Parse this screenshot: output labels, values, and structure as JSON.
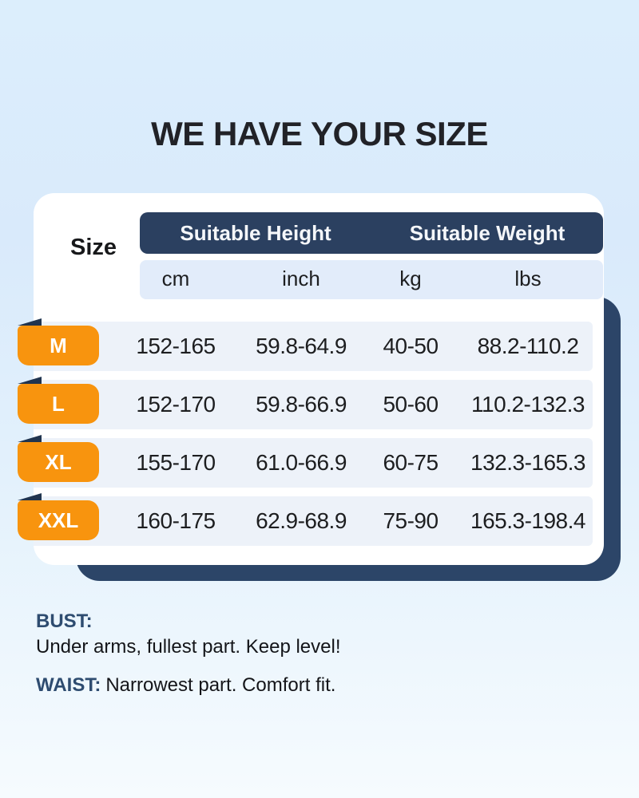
{
  "title": "WE HAVE YOUR SIZE",
  "table": {
    "size_column_label": "Size",
    "column_groups": [
      {
        "label": "Suitable Height"
      },
      {
        "label": "Suitable Weight"
      }
    ],
    "units": [
      "cm",
      "inch",
      "kg",
      "lbs"
    ],
    "rows": [
      {
        "size": "M",
        "values": [
          "152-165",
          "59.8-64.9",
          "40-50",
          "88.2-110.2"
        ]
      },
      {
        "size": "L",
        "values": [
          "152-170",
          "59.8-66.9",
          "50-60",
          "110.2-132.3"
        ]
      },
      {
        "size": "XL",
        "values": [
          "155-170",
          "61.0-66.9",
          "60-75",
          "132.3-165.3"
        ]
      },
      {
        "size": "XXL",
        "values": [
          "160-175",
          "62.9-68.9",
          "75-90",
          "165.3-198.4"
        ]
      }
    ]
  },
  "notes": {
    "bust_label": "BUST:",
    "bust_text": "Under arms, fullest part. Keep level!",
    "waist_label": "WAIST:",
    "waist_text": "Narrowest part. Comfort fit."
  },
  "colors": {
    "accent_orange": "#F8940E",
    "navy": "#2B4060",
    "shadow_navy": "#2C4568",
    "fold_navy": "#20344F",
    "subheader_blue": "#E2ECFA",
    "band_blue": "#EDF2F9"
  },
  "chart_data": {
    "type": "table",
    "title": "WE HAVE YOUR SIZE",
    "columns": [
      "Size",
      "Suitable Height cm",
      "Suitable Height inch",
      "Suitable Weight kg",
      "Suitable Weight lbs"
    ],
    "rows": [
      [
        "M",
        "152-165",
        "59.8-64.9",
        "40-50",
        "88.2-110.2"
      ],
      [
        "L",
        "152-170",
        "59.8-66.9",
        "50-60",
        "110.2-132.3"
      ],
      [
        "XL",
        "155-170",
        "61.0-66.9",
        "60-75",
        "132.3-165.3"
      ],
      [
        "XXL",
        "160-175",
        "62.9-68.9",
        "75-90",
        "165.3-198.4"
      ]
    ]
  }
}
